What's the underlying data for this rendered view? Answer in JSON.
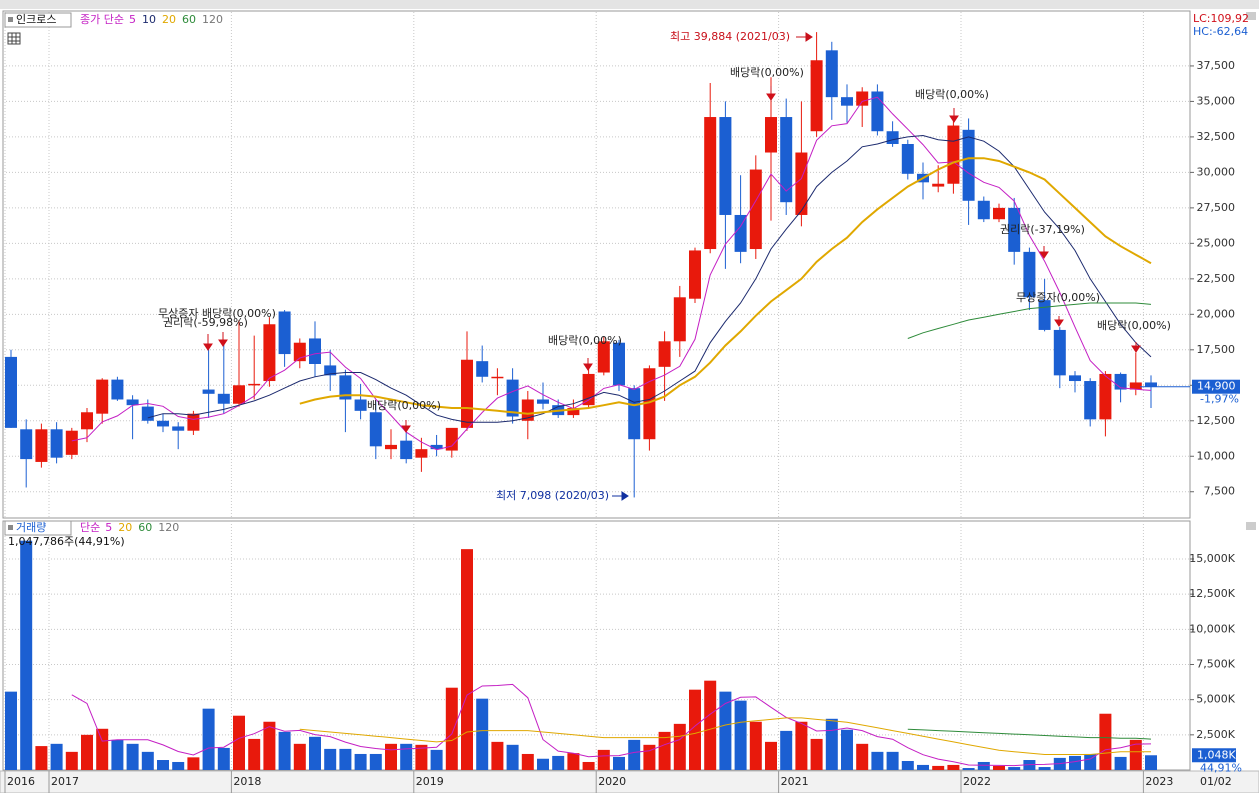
{
  "chart_data": [
    {
      "type": "candlestick",
      "legend_box": "인크로스",
      "legend_title": "종가 단순",
      "legend_extra": "120",
      "categories": [
        "2016",
        null,
        null,
        "2017",
        null,
        null,
        null,
        null,
        null,
        null,
        null,
        null,
        null,
        null,
        null,
        "2018",
        null,
        null,
        null,
        null,
        null,
        null,
        null,
        null,
        null,
        null,
        null,
        "2019",
        null,
        null,
        null,
        null,
        null,
        null,
        null,
        null,
        null,
        null,
        null,
        "2020",
        null,
        null,
        null,
        null,
        null,
        null,
        null,
        null,
        null,
        null,
        null,
        "2021",
        null,
        null,
        null,
        null,
        null,
        null,
        null,
        null,
        null,
        null,
        null,
        "2022",
        null,
        null,
        null,
        null,
        null,
        null,
        null,
        null,
        null,
        null,
        null,
        "2023"
      ],
      "open": [
        17000,
        11900,
        9600,
        11900,
        10100,
        11900,
        13000,
        15400,
        14000,
        13500,
        12500,
        12100,
        11800,
        14700,
        14400,
        13700,
        15000,
        15300,
        20200,
        16700,
        18300,
        16400,
        15700,
        14000,
        13100,
        10500,
        11100,
        9900,
        10800,
        10400,
        12000,
        16700,
        15600,
        15400,
        12500,
        14000,
        13600,
        12900,
        13600,
        15900,
        18000,
        14800,
        11200,
        16300,
        18100,
        21100,
        24600,
        33900,
        27000,
        24600,
        31400,
        33900,
        27000,
        32900,
        38600,
        35300,
        34700,
        35700,
        32900,
        32000,
        29900,
        29000,
        29200,
        33000,
        28000,
        26700,
        27500,
        24400,
        21000,
        18900,
        15700,
        15300,
        12600,
        15800,
        14700,
        15200
      ],
      "high": [
        17500,
        12600,
        12300,
        12400,
        12000,
        13400,
        15500,
        15600,
        14300,
        14000,
        13000,
        12400,
        13200,
        17800,
        18100,
        19600,
        18500,
        19800,
        20300,
        18300,
        19500,
        17500,
        16100,
        15100,
        13900,
        11900,
        12000,
        11300,
        11500,
        11800,
        18800,
        17800,
        16200,
        16200,
        14600,
        15200,
        14000,
        14000,
        16300,
        18400,
        18200,
        15000,
        16400,
        18800,
        22000,
        24700,
        36300,
        35000,
        29800,
        31200,
        36700,
        35200,
        35000,
        39884,
        39200,
        36200,
        36000,
        36200,
        33600,
        32300,
        30700,
        30500,
        33600,
        33800,
        28300,
        27800,
        28200,
        24700,
        22500,
        19100,
        16000,
        15500,
        16000,
        15900,
        17300,
        15700
      ],
      "low": [
        12000,
        7800,
        9200,
        9500,
        9800,
        11000,
        12300,
        13900,
        11200,
        12300,
        11700,
        10500,
        11500,
        12700,
        13000,
        13500,
        14000,
        14900,
        16300,
        16200,
        15600,
        14600,
        11700,
        12600,
        9800,
        9800,
        9500,
        8900,
        10000,
        9900,
        11800,
        15200,
        14300,
        12300,
        11200,
        13300,
        12700,
        12700,
        13400,
        15700,
        14600,
        7098,
        10400,
        13900,
        17000,
        20800,
        24300,
        23200,
        23600,
        23900,
        26600,
        27000,
        26200,
        32500,
        33700,
        33500,
        33200,
        32600,
        31800,
        29500,
        28100,
        28600,
        28500,
        26300,
        26500,
        26500,
        23500,
        20300,
        18800,
        14800,
        14500,
        12100,
        11400,
        13800,
        14300,
        13400
      ],
      "close": [
        12000,
        9800,
        11900,
        9900,
        11800,
        13100,
        15400,
        14000,
        13600,
        12500,
        12100,
        11800,
        13000,
        14400,
        13700,
        15000,
        15100,
        19300,
        17200,
        18000,
        16500,
        15700,
        14000,
        13200,
        10700,
        10800,
        9800,
        10500,
        10500,
        12000,
        16800,
        15600,
        15600,
        12800,
        14000,
        13700,
        12900,
        13400,
        15800,
        18100,
        15000,
        11200,
        16200,
        18100,
        21200,
        24500,
        33900,
        27000,
        24400,
        30200,
        33900,
        27900,
        31400,
        37900,
        35300,
        34700,
        35700,
        32900,
        32000,
        29900,
        29300,
        29200,
        33300,
        28000,
        26700,
        27500,
        24400,
        21200,
        18900,
        15700,
        15300,
        12600,
        15800,
        14700,
        15200,
        14900
      ],
      "up_color": "#e8190c",
      "down_color": "#1b5fd2",
      "series": [
        {
          "name": "5",
          "color": "#c41fc4",
          "values": [
            null,
            null,
            null,
            null,
            11080,
            11300,
            12420,
            12840,
            13580,
            13720,
            13520,
            12800,
            12600,
            12760,
            13000,
            13580,
            14240,
            15500,
            16060,
            16920,
            17220,
            17340,
            16280,
            15480,
            14020,
            12880,
            11700,
            11000,
            10460,
            10720,
            11920,
            13080,
            14100,
            14560,
            14960,
            14340,
            13800,
            13360,
            13960,
            14780,
            15040,
            14700,
            15260,
            15720,
            16340,
            18240,
            22780,
            24940,
            26200,
            28000,
            29880,
            28680,
            29560,
            32260,
            33280,
            33440,
            35000,
            35300,
            34120,
            33040,
            31960,
            30660,
            30740,
            29940,
            29300,
            28940,
            27980,
            25560,
            23740,
            21540,
            19100,
            16740,
            15660,
            14820,
            14720,
            14640
          ]
        },
        {
          "name": "10",
          "color": "#1c2a6e",
          "values": [
            null,
            null,
            null,
            null,
            null,
            null,
            null,
            null,
            null,
            12700,
            13000,
            13000,
            12900,
            13100,
            13300,
            13600,
            13900,
            14300,
            14800,
            15300,
            15600,
            15800,
            15900,
            15900,
            15400,
            14800,
            14300,
            13600,
            12900,
            12600,
            12400,
            12400,
            12400,
            12500,
            12700,
            13000,
            13500,
            13700,
            14100,
            14500,
            14300,
            13800,
            14000,
            14600,
            15300,
            16000,
            18000,
            19500,
            20800,
            22500,
            24600,
            26000,
            27300,
            29000,
            30000,
            30800,
            31800,
            32000,
            32300,
            32500,
            32600,
            32300,
            32200,
            32500,
            32200,
            31500,
            30400,
            28800,
            27200,
            26000,
            24500,
            22500,
            20900,
            19300,
            18000,
            17000
          ]
        },
        {
          "name": "20",
          "color": "#e0a800",
          "values": [
            null,
            null,
            null,
            null,
            null,
            null,
            null,
            null,
            null,
            null,
            null,
            null,
            null,
            null,
            null,
            null,
            null,
            null,
            null,
            13700,
            14000,
            14200,
            14300,
            14300,
            14200,
            14000,
            13800,
            13600,
            13500,
            13400,
            13400,
            13300,
            13200,
            13100,
            13000,
            13100,
            13200,
            13300,
            13400,
            13600,
            13800,
            13600,
            13800,
            14200,
            15000,
            15600,
            16600,
            17800,
            18800,
            19900,
            20900,
            21700,
            22500,
            23700,
            24600,
            25400,
            26500,
            27400,
            28200,
            29000,
            29600,
            30200,
            30700,
            31000,
            31000,
            30800,
            30400,
            30000,
            29500,
            28500,
            27500,
            26500,
            25500,
            24800,
            24200,
            23600
          ]
        },
        {
          "name": "60",
          "color": "#2e8b3a",
          "values": [
            null,
            null,
            null,
            null,
            null,
            null,
            null,
            null,
            null,
            null,
            null,
            null,
            null,
            null,
            null,
            null,
            null,
            null,
            null,
            null,
            null,
            null,
            null,
            null,
            null,
            null,
            null,
            null,
            null,
            null,
            null,
            null,
            null,
            null,
            null,
            null,
            null,
            null,
            null,
            null,
            null,
            null,
            null,
            null,
            null,
            null,
            null,
            null,
            null,
            null,
            null,
            null,
            null,
            null,
            null,
            null,
            null,
            null,
            null,
            18300,
            18700,
            19000,
            19300,
            19600,
            19800,
            20000,
            20200,
            20400,
            20500,
            20600,
            20700,
            20800,
            20800,
            20800,
            20800,
            20700
          ]
        }
      ],
      "ylim": [
        5650,
        41300
      ],
      "yticks": [
        {
          "value": 7500,
          "label": "7,500"
        },
        {
          "value": 10000,
          "label": "10,000"
        },
        {
          "value": 12500,
          "label": "12,500"
        },
        {
          "value": 15000,
          "label": "15,000"
        },
        {
          "value": 17500,
          "label": "17,500"
        },
        {
          "value": 20000,
          "label": "20,000"
        },
        {
          "value": 22500,
          "label": "22,500"
        },
        {
          "value": 25000,
          "label": "25,000"
        },
        {
          "value": 27500,
          "label": "27,500"
        },
        {
          "value": 30000,
          "label": "30,000"
        },
        {
          "value": 32500,
          "label": "32,500"
        },
        {
          "value": 35000,
          "label": "35,000"
        },
        {
          "value": 37500,
          "label": "37,500"
        }
      ],
      "annotations": [
        "최고 39,884 (2021/03)",
        "배당락(0,00%)",
        "배당락(0,00%)",
        "무상증자 배당락(0,00%)",
        "권리락(-59,98%)",
        "배당락(0,00%)",
        "배당락(0,00%)",
        "권리락(-37,19%)",
        "무상증자(0,00%)",
        "배당락(0,00%)",
        "최저 7,098 (2020/03)"
      ],
      "lc_label": "LC:109,92",
      "hc_label": "HC:-62,64",
      "last_label": "14,900",
      "change_label": "-1,97%"
    },
    {
      "type": "bar",
      "legend_box": "거래량",
      "legend_title": "단순",
      "legend_extra": "120",
      "volume_label": "1,047,786주(44,91%)",
      "values": [
        5570,
        16300,
        1700,
        1860,
        1290,
        2500,
        2930,
        2140,
        1860,
        1290,
        710,
        570,
        900,
        4360,
        1570,
        3860,
        2210,
        3430,
        2710,
        1860,
        2360,
        1500,
        1500,
        1140,
        1140,
        1860,
        1860,
        1790,
        1430,
        5850,
        15700,
        5070,
        2000,
        1790,
        1140,
        800,
        1000,
        1200,
        570,
        1430,
        930,
        2140,
        1790,
        2710,
        3280,
        5710,
        6350,
        5570,
        4930,
        3430,
        2000,
        2780,
        3430,
        2210,
        3640,
        2860,
        1860,
        1290,
        1290,
        640,
        360,
        290,
        360,
        140,
        570,
        290,
        210,
        710,
        210,
        860,
        1000,
        1140,
        4000,
        930,
        2140,
        1048
      ],
      "series": [
        {
          "name": "5",
          "color": "#c41fc4",
          "values": [
            null,
            null,
            null,
            null,
            5344,
            4730,
            2056,
            2144,
            2144,
            2144,
            1786,
            1314,
            1066,
            1566,
            1622,
            2252,
            2580,
            3086,
            2756,
            2814,
            2514,
            2372,
            1986,
            1672,
            1528,
            1428,
            1500,
            1558,
            1616,
            2558,
            5326,
            5968,
            6010,
            6082,
            5140,
            2160,
            1346,
            1186,
            942,
            1000,
            1026,
            1254,
            1372,
            1800,
            2170,
            3126,
            3968,
            4724,
            5168,
            5198,
            4456,
            3742,
            3314,
            2770,
            2812,
            2984,
            2800,
            2372,
            2188,
            1588,
            1088,
            774,
            588,
            358,
            344,
            330,
            314,
            384,
            398,
            456,
            598,
            784,
            1442,
            1586,
            1842,
            1852
          ]
        },
        {
          "name": "20",
          "color": "#e0a800",
          "values": [
            null,
            null,
            null,
            null,
            null,
            null,
            null,
            null,
            null,
            null,
            null,
            null,
            null,
            null,
            null,
            null,
            null,
            null,
            null,
            2900,
            2800,
            2700,
            2600,
            2500,
            2400,
            2300,
            2200,
            2100,
            2000,
            2100,
            2700,
            2800,
            2800,
            2800,
            2800,
            2700,
            2600,
            2500,
            2400,
            2300,
            2300,
            2300,
            2300,
            2300,
            2400,
            2600,
            2900,
            3200,
            3400,
            3500,
            3600,
            3700,
            3700,
            3600,
            3500,
            3400,
            3200,
            3000,
            2800,
            2600,
            2400,
            2200,
            2000,
            1800,
            1600,
            1400,
            1300,
            1200,
            1100,
            1100,
            1100,
            1100,
            1200,
            1300,
            1300,
            1300
          ]
        },
        {
          "name": "60",
          "color": "#2e8b3a",
          "values": [
            null,
            null,
            null,
            null,
            null,
            null,
            null,
            null,
            null,
            null,
            null,
            null,
            null,
            null,
            null,
            null,
            null,
            null,
            null,
            null,
            null,
            null,
            null,
            null,
            null,
            null,
            null,
            null,
            null,
            null,
            null,
            null,
            null,
            null,
            null,
            null,
            null,
            null,
            null,
            null,
            null,
            null,
            null,
            null,
            null,
            null,
            null,
            null,
            null,
            null,
            null,
            null,
            null,
            null,
            null,
            null,
            null,
            null,
            null,
            2900,
            2850,
            2800,
            2750,
            2700,
            2650,
            2600,
            2550,
            2500,
            2450,
            2400,
            2350,
            2300,
            2300,
            2250,
            2250,
            2200
          ]
        }
      ],
      "ylim": [
        0,
        17700
      ],
      "yticks": [
        {
          "value": 2500,
          "label": "2,500K"
        },
        {
          "value": 5000,
          "label": "5,000K"
        },
        {
          "value": 7500,
          "label": "7,500K"
        },
        {
          "value": 10000,
          "label": "10,000K"
        },
        {
          "value": 12500,
          "label": "12,500K"
        },
        {
          "value": 15000,
          "label": "15,000K"
        }
      ],
      "last_label": "1,048K",
      "pct_label": "44,91%"
    }
  ],
  "date_box": "01/02"
}
